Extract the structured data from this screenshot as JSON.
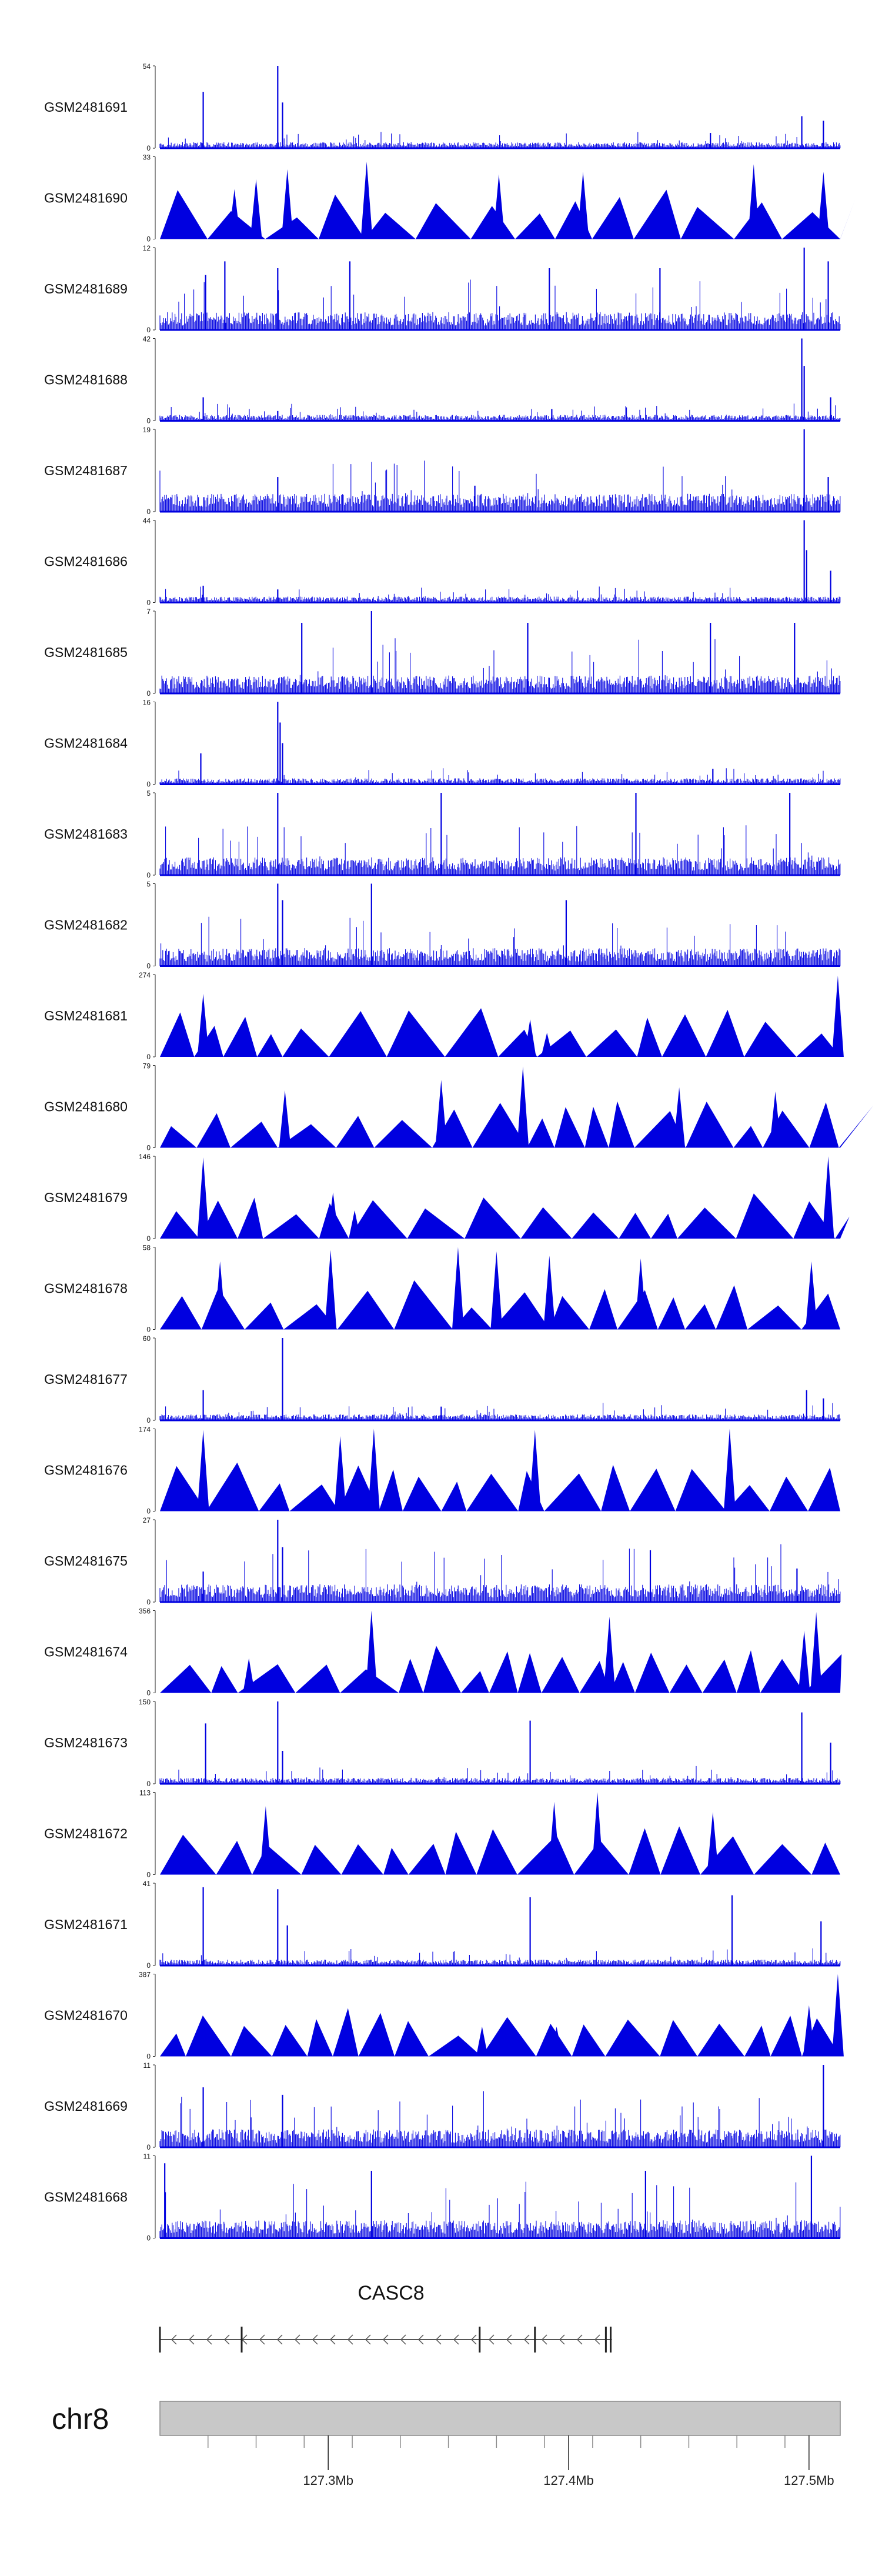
{
  "chart_data": {
    "type": "area",
    "title": "",
    "colors": {
      "signal": "#0000e0",
      "axis": "#222222",
      "ideogram_fill": "#c8c8c8",
      "ideogram_stroke": "#8a8a8a",
      "gene": "#555555"
    },
    "x_range_mb": [
      127.23,
      127.513
    ],
    "tracks": [
      {
        "sample": "GSM2481691",
        "ymax": "54",
        "ymin": "0",
        "style": "spiky",
        "peaks": [
          [
            127.248,
            37
          ],
          [
            127.279,
            54
          ],
          [
            127.281,
            30
          ],
          [
            127.459,
            10
          ],
          [
            127.497,
            21
          ],
          [
            127.506,
            18
          ]
        ]
      },
      {
        "sample": "GSM2481690",
        "ymax": "33",
        "ymin": "0",
        "style": "sparse",
        "peaks": [
          [
            127.261,
            20
          ],
          [
            127.27,
            24
          ],
          [
            127.283,
            28
          ],
          [
            127.316,
            31
          ],
          [
            127.371,
            26
          ],
          [
            127.406,
            27
          ],
          [
            127.477,
            30
          ],
          [
            127.506,
            27
          ]
        ]
      },
      {
        "sample": "GSM2481689",
        "ymax": "12",
        "ymin": "0",
        "style": "noisy",
        "peaks": [
          [
            127.249,
            8
          ],
          [
            127.257,
            10
          ],
          [
            127.279,
            9
          ],
          [
            127.309,
            10
          ],
          [
            127.392,
            9
          ],
          [
            127.438,
            9
          ],
          [
            127.498,
            12
          ],
          [
            127.508,
            10
          ]
        ]
      },
      {
        "sample": "GSM2481688",
        "ymax": "42",
        "ymin": "0",
        "style": "spiky",
        "peaks": [
          [
            127.248,
            12
          ],
          [
            127.279,
            5
          ],
          [
            127.393,
            6
          ],
          [
            127.497,
            42
          ],
          [
            127.498,
            28
          ],
          [
            127.509,
            12
          ]
        ]
      },
      {
        "sample": "GSM2481687",
        "ymax": "19",
        "ymin": "0",
        "style": "noisy",
        "peaks": [
          [
            127.279,
            8
          ],
          [
            127.361,
            6
          ],
          [
            127.498,
            19
          ],
          [
            127.508,
            8
          ]
        ]
      },
      {
        "sample": "GSM2481686",
        "ymax": "44",
        "ymin": "0",
        "style": "spiky",
        "peaks": [
          [
            127.248,
            9
          ],
          [
            127.279,
            7
          ],
          [
            127.498,
            44
          ],
          [
            127.499,
            28
          ],
          [
            127.509,
            17
          ]
        ]
      },
      {
        "sample": "GSM2481685",
        "ymax": "7",
        "ymin": "0",
        "style": "noisy",
        "peaks": [
          [
            127.289,
            6
          ],
          [
            127.318,
            7
          ],
          [
            127.383,
            6
          ],
          [
            127.459,
            6
          ],
          [
            127.494,
            6
          ]
        ]
      },
      {
        "sample": "GSM2481684",
        "ymax": "16",
        "ymin": "0",
        "style": "spiky",
        "peaks": [
          [
            127.247,
            6
          ],
          [
            127.279,
            16
          ],
          [
            127.28,
            12
          ],
          [
            127.281,
            8
          ],
          [
            127.46,
            3
          ]
        ]
      },
      {
        "sample": "GSM2481683",
        "ymax": "5",
        "ymin": "0",
        "style": "noisy",
        "peaks": [
          [
            127.279,
            5
          ],
          [
            127.347,
            5
          ],
          [
            127.428,
            5
          ],
          [
            127.492,
            5
          ]
        ]
      },
      {
        "sample": "GSM2481682",
        "ymax": "5",
        "ymin": "0",
        "style": "noisy",
        "peaks": [
          [
            127.279,
            5
          ],
          [
            127.281,
            4
          ],
          [
            127.318,
            5
          ],
          [
            127.399,
            4
          ]
        ]
      },
      {
        "sample": "GSM2481681",
        "ymax": "274",
        "ymin": "0",
        "style": "sparse",
        "peaks": [
          [
            127.248,
            210
          ],
          [
            127.384,
            125
          ],
          [
            127.391,
            80
          ],
          [
            127.512,
            270
          ]
        ]
      },
      {
        "sample": "GSM2481680",
        "ymax": "79",
        "ymin": "0",
        "style": "sparse",
        "peaks": [
          [
            127.282,
            55
          ],
          [
            127.347,
            65
          ],
          [
            127.381,
            78
          ],
          [
            127.446,
            58
          ],
          [
            127.486,
            54
          ]
        ]
      },
      {
        "sample": "GSM2481679",
        "ymax": "146",
        "ymin": "0",
        "style": "sparse",
        "peaks": [
          [
            127.248,
            144
          ],
          [
            127.302,
            82
          ],
          [
            127.311,
            50
          ],
          [
            127.508,
            146
          ]
        ]
      },
      {
        "sample": "GSM2481678",
        "ymax": "58",
        "ymin": "0",
        "style": "sparse",
        "peaks": [
          [
            127.255,
            48
          ],
          [
            127.301,
            56
          ],
          [
            127.354,
            58
          ],
          [
            127.37,
            55
          ],
          [
            127.392,
            52
          ],
          [
            127.43,
            50
          ],
          [
            127.501,
            48
          ]
        ]
      },
      {
        "sample": "GSM2481677",
        "ymax": "60",
        "ymin": "0",
        "style": "spiky",
        "peaks": [
          [
            127.248,
            22
          ],
          [
            127.281,
            60
          ],
          [
            127.347,
            10
          ],
          [
            127.499,
            22
          ],
          [
            127.506,
            16
          ]
        ]
      },
      {
        "sample": "GSM2481676",
        "ymax": "174",
        "ymin": "0",
        "style": "sparse",
        "peaks": [
          [
            127.248,
            172
          ],
          [
            127.305,
            159
          ],
          [
            127.319,
            174
          ],
          [
            127.386,
            172
          ],
          [
            127.467,
            174
          ]
        ]
      },
      {
        "sample": "GSM2481675",
        "ymax": "27",
        "ymin": "0",
        "style": "noisy",
        "peaks": [
          [
            127.248,
            10
          ],
          [
            127.279,
            27
          ],
          [
            127.281,
            18
          ],
          [
            127.434,
            17
          ],
          [
            127.495,
            11
          ]
        ]
      },
      {
        "sample": "GSM2481674",
        "ymax": "356",
        "ymin": "0",
        "style": "sparse",
        "peaks": [
          [
            127.267,
            150
          ],
          [
            127.318,
            356
          ],
          [
            127.417,
            330
          ],
          [
            127.498,
            270
          ],
          [
            127.503,
            350
          ]
        ]
      },
      {
        "sample": "GSM2481673",
        "ymax": "150",
        "ymin": "0",
        "style": "spiky",
        "peaks": [
          [
            127.249,
            110
          ],
          [
            127.279,
            150
          ],
          [
            127.281,
            60
          ],
          [
            127.384,
            115
          ],
          [
            127.497,
            130
          ],
          [
            127.509,
            75
          ]
        ]
      },
      {
        "sample": "GSM2481672",
        "ymax": "113",
        "ymin": "0",
        "style": "sparse",
        "peaks": [
          [
            127.274,
            94
          ],
          [
            127.394,
            100
          ],
          [
            127.412,
            113
          ],
          [
            127.46,
            86
          ]
        ]
      },
      {
        "sample": "GSM2481671",
        "ymax": "41",
        "ymin": "0",
        "style": "spiky",
        "peaks": [
          [
            127.248,
            39
          ],
          [
            127.279,
            38
          ],
          [
            127.283,
            20
          ],
          [
            127.384,
            34
          ],
          [
            127.468,
            35
          ],
          [
            127.505,
            22
          ]
        ]
      },
      {
        "sample": "GSM2481670",
        "ymax": "387",
        "ymin": "0",
        "style": "sparse",
        "peaks": [
          [
            127.306,
            140
          ],
          [
            127.364,
            140
          ],
          [
            127.395,
            140
          ],
          [
            127.5,
            240
          ],
          [
            127.512,
            387
          ]
        ]
      },
      {
        "sample": "GSM2481669",
        "ymax": "11",
        "ymin": "0",
        "style": "noisy",
        "peaks": [
          [
            127.248,
            8
          ],
          [
            127.281,
            7
          ],
          [
            127.506,
            11
          ]
        ]
      },
      {
        "sample": "GSM2481668",
        "ymax": "11",
        "ymin": "0",
        "style": "noisy",
        "peaks": [
          [
            127.232,
            10
          ],
          [
            127.318,
            9
          ],
          [
            127.432,
            9
          ],
          [
            127.501,
            11
          ]
        ]
      }
    ],
    "gene": {
      "name": "CASC8",
      "strand": "-",
      "start_mb": 127.23,
      "end_mb": 127.418,
      "exons_mb": [
        127.23,
        127.264,
        127.363,
        127.386,
        127.4155,
        127.4175
      ]
    },
    "ideogram": {
      "chromosome": "chr8",
      "ticks_mb": [
        127.25,
        127.3,
        127.35,
        127.4,
        127.45,
        127.5
      ],
      "minor_ticks_mb": [
        127.25,
        127.27,
        127.29,
        127.31,
        127.33,
        127.35,
        127.37,
        127.39,
        127.41,
        127.43,
        127.45,
        127.47,
        127.49
      ],
      "major_ticks": [
        {
          "pos_mb": 127.3,
          "label": "127.3Mb"
        },
        {
          "pos_mb": 127.4,
          "label": "127.4Mb"
        },
        {
          "pos_mb": 127.5,
          "label": "127.5Mb"
        }
      ]
    }
  }
}
